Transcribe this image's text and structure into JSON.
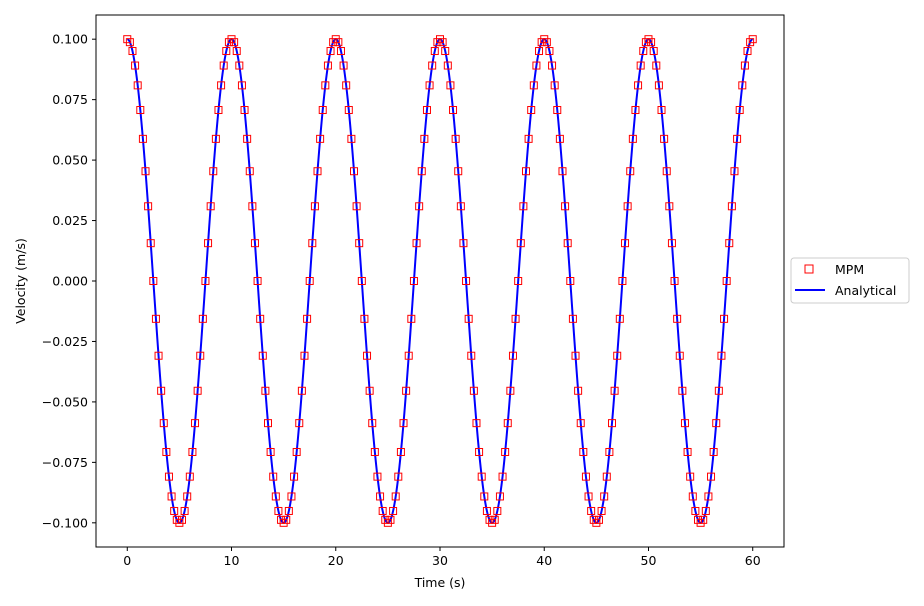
{
  "chart_data": {
    "type": "line",
    "title": "",
    "xlabel": "Time (s)",
    "ylabel": "Velocity (m/s)",
    "xlim": [
      -3,
      63
    ],
    "ylim": [
      -0.11,
      0.11
    ],
    "xticks": [
      0,
      10,
      20,
      30,
      40,
      50,
      60
    ],
    "xtick_labels": [
      "0",
      "10",
      "20",
      "30",
      "40",
      "50",
      "60"
    ],
    "yticks": [
      -0.1,
      -0.075,
      -0.05,
      -0.025,
      0.0,
      0.025,
      0.05,
      0.075,
      0.1
    ],
    "ytick_labels": [
      "−0.100",
      "−0.075",
      "−0.050",
      "−0.025",
      "0.000",
      "0.025",
      "0.050",
      "0.075",
      "0.100"
    ],
    "grid": false,
    "legend_position": "outside-right",
    "series": [
      {
        "name": "MPM",
        "style": "markers",
        "marker": "square-open",
        "color": "#ff0000",
        "amplitude": 0.1,
        "period": 10,
        "t_start": 0,
        "t_end": 60,
        "step": 0.25
      },
      {
        "name": "Analytical",
        "style": "line",
        "color": "#0000ff",
        "amplitude": 0.1,
        "period": 10,
        "t_start": 0,
        "t_end": 60
      }
    ]
  }
}
